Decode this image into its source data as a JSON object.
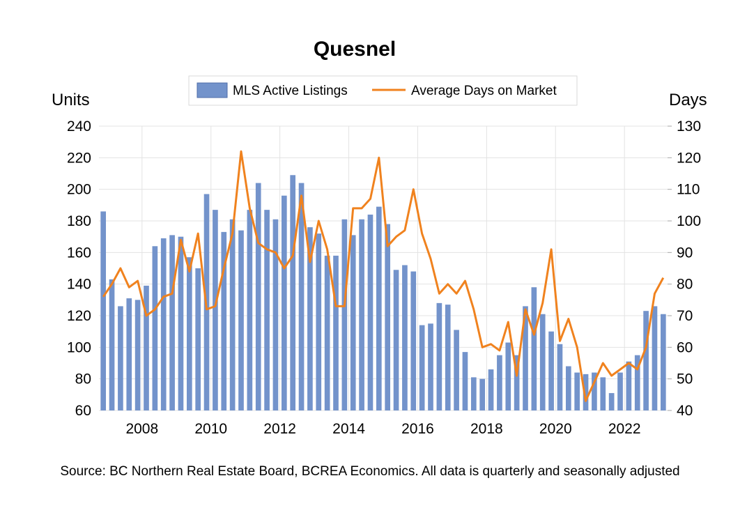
{
  "chart_data": {
    "type": "bar+line",
    "title": "Quesnel",
    "left_axis_label": "Units",
    "right_axis_label": "Days",
    "left_ylim": [
      60,
      240
    ],
    "left_yticks": [
      60,
      80,
      100,
      120,
      140,
      160,
      180,
      200,
      220,
      240
    ],
    "right_ylim": [
      40,
      130
    ],
    "right_yticks": [
      40,
      50,
      60,
      70,
      80,
      90,
      100,
      110,
      120,
      130
    ],
    "xticks": [
      "2008",
      "2010",
      "2012",
      "2014",
      "2016",
      "2018",
      "2020",
      "2022"
    ],
    "legend_position": "top-center",
    "grid": "horizontal and vertical, light gray",
    "source": "Source: BC Northern Real Estate Board, BCREA Economics. All data is quarterly and seasonally adjusted",
    "colors": {
      "bars": "#7393CB",
      "line": "#F0821E",
      "grid": "#E3E3E3"
    },
    "x_start_year": 2006.75,
    "series": [
      {
        "name": "MLS Active Listings",
        "kind": "bar",
        "axis": "left",
        "values": [
          186,
          143,
          126,
          131,
          130,
          139,
          164,
          169,
          171,
          170,
          157,
          150,
          197,
          187,
          173,
          181,
          174,
          187,
          204,
          187,
          181,
          196,
          209,
          204,
          176,
          172,
          158,
          158,
          181,
          171,
          181,
          184,
          189,
          178,
          149,
          152,
          148,
          114,
          115,
          128,
          127,
          111,
          97,
          81,
          80,
          86,
          95,
          103,
          95,
          126,
          138,
          121,
          110,
          102,
          88,
          84,
          83,
          84,
          81,
          71,
          84,
          91,
          95,
          123,
          126,
          121
        ]
      },
      {
        "name": "Average Days on Market",
        "kind": "line",
        "axis": "right",
        "values": [
          76,
          80,
          85,
          79,
          81,
          70,
          72,
          76,
          77,
          94,
          84,
          96,
          72,
          73,
          85,
          96,
          122,
          104,
          93,
          91,
          90,
          85,
          89,
          108,
          87,
          100,
          91,
          73,
          73,
          104,
          104,
          107,
          120,
          92,
          95,
          97,
          110,
          96,
          88,
          77,
          80,
          77,
          81,
          72,
          60,
          61,
          59,
          68,
          51,
          72,
          64,
          74,
          91,
          62,
          69,
          60,
          43,
          49,
          55,
          51,
          53,
          55,
          53,
          60,
          77,
          82
        ]
      }
    ]
  }
}
